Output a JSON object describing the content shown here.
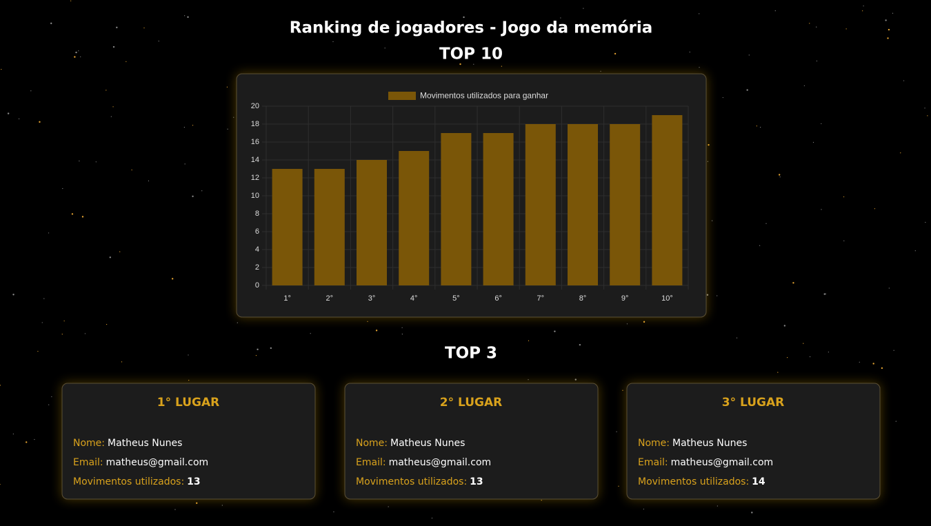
{
  "header": {
    "title": "Ranking de jogadores - Jogo da memória",
    "top10_title": "TOP 10",
    "top3_title": "TOP 3"
  },
  "chart_data": {
    "type": "bar",
    "categories": [
      "1°",
      "2°",
      "3°",
      "4°",
      "5°",
      "6°",
      "7°",
      "8°",
      "9°",
      "10°"
    ],
    "series": [
      {
        "name": "Movimentos utilizados para ganhar",
        "color": "#7a5608",
        "values": [
          13,
          13,
          14,
          15,
          17,
          17,
          18,
          18,
          18,
          19
        ]
      }
    ],
    "ylim": [
      0,
      20
    ],
    "yticks": [
      0,
      2,
      4,
      6,
      8,
      10,
      12,
      14,
      16,
      18,
      20
    ],
    "grid": true,
    "legend": "top"
  },
  "cards": [
    {
      "title": "1° LUGAR",
      "fields": [
        {
          "label": "Nome:",
          "value": "Matheus Nunes"
        },
        {
          "label": "Email:",
          "value": "matheus@gmail.com"
        },
        {
          "label": "Movimentos utilizados:",
          "value": 13
        }
      ]
    },
    {
      "title": "2° LUGAR",
      "fields": [
        {
          "label": "Nome:",
          "value": "Matheus Nunes"
        },
        {
          "label": "Email:",
          "value": "matheus@gmail.com"
        },
        {
          "label": "Movimentos utilizados:",
          "value": 13
        }
      ]
    },
    {
      "title": "3° LUGAR",
      "fields": [
        {
          "label": "Nome:",
          "value": "Matheus Nunes"
        },
        {
          "label": "Email:",
          "value": "matheus@gmail.com"
        },
        {
          "label": "Movimentos utilizados:",
          "value": 14
        }
      ]
    }
  ]
}
